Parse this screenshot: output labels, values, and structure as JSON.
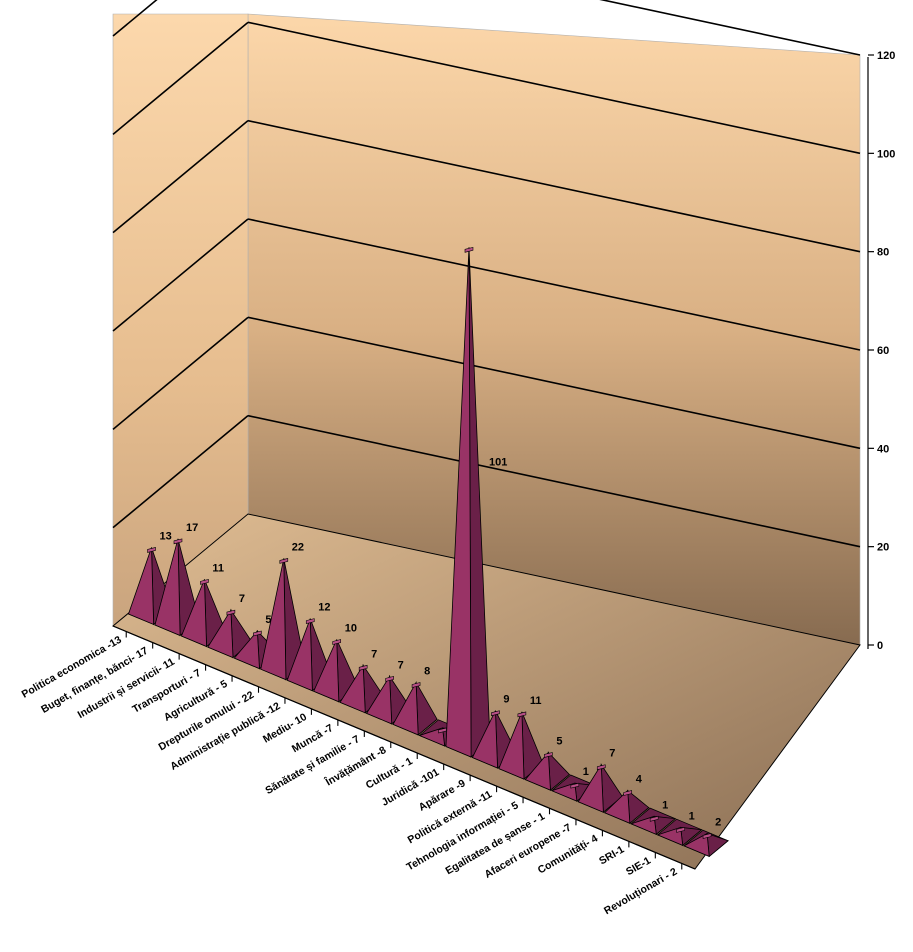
{
  "chart_data": {
    "type": "bar",
    "style": "3d-pyramid",
    "categories": [
      "Politica economica -13",
      "Buget, finanțe, bănci- 17",
      "Industrii și servicii- 11",
      "Transporturi - 7",
      "Agricultură - 5",
      "Drepturile omului - 22",
      "Administrație publică -12",
      "Mediu- 10",
      "Muncă -7",
      "Sănătate și familie - 7",
      "Învățământ -8",
      "Cultură - 1",
      "Juridică -101",
      "Apărare -9",
      "Politică externă -11",
      "Tehnologia informației - 5",
      "Egalitatea de șanse - 1",
      "Afaceri europene -7",
      "Comunități- 4",
      "SRI-1",
      "SIE-1",
      "Revoluționari - 2"
    ],
    "values": [
      13,
      17,
      11,
      7,
      5,
      22,
      12,
      10,
      7,
      7,
      8,
      1,
      101,
      9,
      11,
      5,
      1,
      7,
      4,
      1,
      1,
      2
    ],
    "data_labels": [
      "13",
      "17",
      "11",
      "7",
      "5",
      "22",
      "12",
      "10",
      "7",
      "7",
      "8",
      "",
      "101",
      "9",
      "11",
      "5",
      "1",
      "7",
      "4",
      "1",
      "1",
      "2"
    ],
    "y_ticks": [
      "0",
      "20",
      "40",
      "60",
      "80",
      "100",
      "120"
    ],
    "ylim": [
      0,
      120
    ],
    "grid": true,
    "colors": {
      "bar_front": "#993366",
      "bar_side": "#6a2048",
      "bar_top": "#b84f86",
      "floor": "#c9a47e",
      "wall_top": "#fcd7aa",
      "wall_bottom": "#876b50"
    }
  }
}
